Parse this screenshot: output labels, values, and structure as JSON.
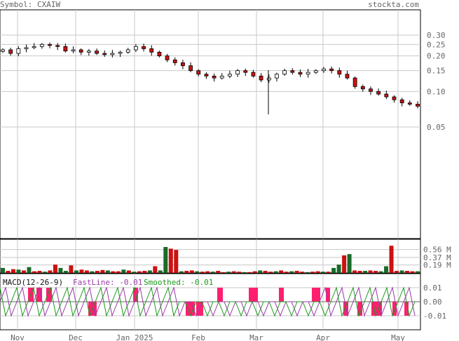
{
  "header": {
    "symbol_text": "Symbol: CXAIW",
    "site": "stockta.com"
  },
  "colors": {
    "up": "#ffffff",
    "down": "#cc1111",
    "vol_up": "#1a6b2a",
    "vol_down": "#cc1111",
    "grid": "#c8c8c8",
    "text": "#666666",
    "macd_label": "#111111",
    "fast_label": "#9a3aa8",
    "smoothed_label": "#1b9a1b",
    "macd_bar": "#ff1f6f",
    "fast_line": "#9a3aa8",
    "smooth_line": "#1b9a1b"
  },
  "chart_data": [
    {
      "type": "candlestick",
      "scale": "log",
      "y_ticks": [
        "0.30",
        "0.25",
        "0.20",
        "0.15",
        "0.10",
        "0.05"
      ],
      "x_ticks": [
        "Nov",
        "Dec",
        "Jan 2025",
        "Feb",
        "Mar",
        "Apr",
        "May"
      ],
      "grid": true,
      "approx_close": [
        0.225,
        0.21,
        0.23,
        0.235,
        0.24,
        0.25,
        0.245,
        0.24,
        0.22,
        0.225,
        0.215,
        0.22,
        0.21,
        0.205,
        0.21,
        0.215,
        0.225,
        0.24,
        0.23,
        0.215,
        0.2,
        0.185,
        0.175,
        0.165,
        0.15,
        0.14,
        0.135,
        0.13,
        0.135,
        0.14,
        0.15,
        0.145,
        0.135,
        0.125,
        0.13,
        0.14,
        0.15,
        0.145,
        0.14,
        0.145,
        0.15,
        0.155,
        0.15,
        0.14,
        0.13,
        0.11,
        0.105,
        0.1,
        0.095,
        0.09,
        0.085,
        0.08,
        0.078,
        0.075
      ]
    },
    {
      "type": "bar",
      "name": "Volume",
      "y_ticks": [
        "0.56 M",
        "0.37 M",
        "0.19 M"
      ],
      "values": [
        0.12,
        0.05,
        0.09,
        0.08,
        0.06,
        0.14,
        0.04,
        0.05,
        0.03,
        0.06,
        0.2,
        0.12,
        0.05,
        0.18,
        0.06,
        0.08,
        0.06,
        0.04,
        0.05,
        0.07,
        0.06,
        0.04,
        0.04,
        0.08,
        0.06,
        0.03,
        0.04,
        0.05,
        0.06,
        0.16,
        0.06,
        0.62,
        0.58,
        0.55,
        0.04,
        0.05,
        0.06,
        0.04,
        0.03,
        0.04,
        0.03,
        0.05,
        0.02,
        0.03,
        0.04,
        0.03,
        0.02,
        0.02,
        0.04,
        0.06,
        0.05,
        0.03,
        0.04,
        0.06,
        0.03,
        0.04,
        0.05,
        0.03,
        0.02,
        0.03,
        0.04,
        0.03,
        0.03,
        0.12,
        0.2,
        0.42,
        0.45,
        0.06,
        0.05,
        0.05,
        0.06,
        0.05,
        0.04,
        0.16,
        0.65,
        0.05,
        0.06,
        0.05,
        0.04,
        0.04
      ],
      "up": [
        true,
        false,
        false,
        true,
        false,
        true,
        false,
        false,
        true,
        false,
        false,
        true,
        true,
        false,
        true,
        false,
        false,
        true,
        false,
        false,
        true,
        false,
        false,
        true,
        false,
        true,
        false,
        false,
        true,
        false,
        true,
        true,
        false,
        false,
        true,
        false,
        false,
        true,
        false,
        false,
        true,
        false,
        false,
        true,
        false,
        false,
        true,
        false,
        false,
        true,
        false,
        false,
        true,
        false,
        false,
        true,
        false,
        false,
        true,
        false,
        false,
        true,
        false,
        true,
        true,
        false,
        true,
        false,
        false,
        true,
        false,
        false,
        true,
        true,
        false,
        false,
        true,
        false,
        false,
        true
      ]
    },
    {
      "type": "line",
      "name": "MACD(12-26-9)",
      "y_ticks": [
        "0.01",
        "0.00",
        "-0.01"
      ],
      "series": [
        {
          "name": "FastLine: -0.01"
        },
        {
          "name": "Smoothed: -0.01"
        }
      ]
    }
  ],
  "macd_legend": {
    "title": "MACD(12-26-9)",
    "fast": "FastLine: -0.01",
    "smoothed": "Smoothed: -0.01"
  }
}
